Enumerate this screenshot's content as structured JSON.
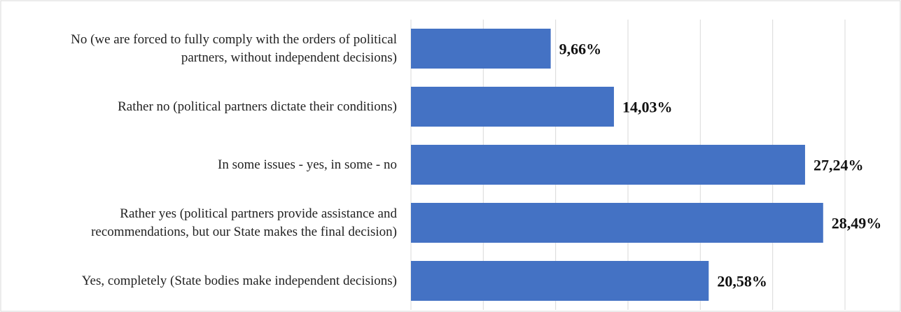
{
  "chart_data": {
    "type": "bar",
    "orientation": "horizontal",
    "categories": [
      "No (we are forced to fully comply with the orders of political partners, without independent decisions)",
      "Rather no (political partners dictate their conditions)",
      "In some issues - yes, in some - no",
      "Rather yes (political partners provide assistance and recommendations, but our State makes the final decision)",
      "Yes, completely (State bodies make independent decisions)"
    ],
    "values": [
      9.66,
      14.03,
      27.24,
      28.49,
      20.58
    ],
    "value_labels": [
      "9,66%",
      "14,03%",
      "27,24%",
      "28,49%",
      "20,58%"
    ],
    "color": "#4472c4",
    "xlim": [
      0,
      30
    ],
    "xticks": [
      0,
      5,
      10,
      15,
      20,
      25,
      30
    ],
    "grid": true
  }
}
